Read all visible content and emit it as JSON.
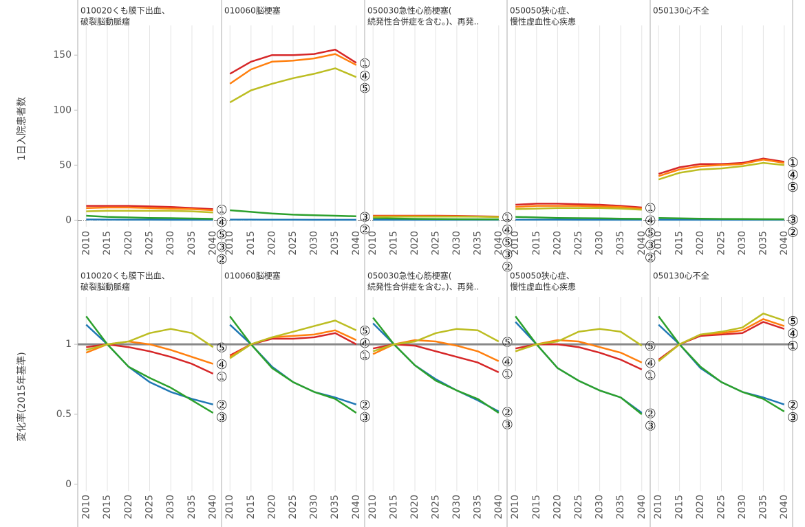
{
  "chart_data": [
    {
      "type": "line",
      "ylabel": "1日入院患者数",
      "x": [
        2010,
        2015,
        2020,
        2025,
        2030,
        2035,
        2040
      ],
      "xlim": [
        2008,
        2042
      ],
      "xticks": [
        2010,
        2015,
        2020,
        2025,
        2030,
        2035,
        2040
      ],
      "ylim": [
        -6,
        172
      ],
      "yticks": [
        0,
        50,
        100,
        150
      ],
      "grid": "x",
      "reference_line": 0,
      "panels": [
        {
          "title": [
            "010020くも膜下出血、",
            "破裂脳動脈瘤"
          ],
          "series": [
            {
              "name": "①",
              "color": "#d62728",
              "values": [
                13,
                13,
                13,
                12.5,
                12,
                11,
                10
              ]
            },
            {
              "name": "②",
              "color": "#1f77b4",
              "values": [
                0.6,
                0.5,
                0.4,
                0.4,
                0.3,
                0.3,
                0.3
              ]
            },
            {
              "name": "③",
              "color": "#2ca02c",
              "values": [
                4,
                3,
                2.5,
                2,
                1.8,
                1.5,
                1.2
              ]
            },
            {
              "name": "④",
              "color": "#ff7f0e",
              "values": [
                11,
                11.5,
                11.5,
                11,
                10.5,
                10,
                9
              ]
            },
            {
              "name": "⑤",
              "color": "#bcbd22",
              "values": [
                8,
                8.5,
                8.5,
                8.5,
                8.5,
                8,
                7
              ]
            }
          ]
        },
        {
          "title": [
            "010060脳梗塞"
          ],
          "series": [
            {
              "name": "①",
              "color": "#d62728",
              "values": [
                133,
                144,
                150,
                150,
                151,
                155,
                143
              ]
            },
            {
              "name": "②",
              "color": "#1f77b4",
              "values": [
                0.5,
                0.5,
                0.4,
                0.4,
                0.3,
                0.3,
                0.3
              ]
            },
            {
              "name": "③",
              "color": "#2ca02c",
              "values": [
                9,
                7.5,
                6,
                5,
                4.5,
                4,
                3.5
              ]
            },
            {
              "name": "④",
              "color": "#ff7f0e",
              "values": [
                124,
                137,
                144,
                145,
                147,
                151,
                141
              ]
            },
            {
              "name": "⑤",
              "color": "#bcbd22",
              "values": [
                107,
                118,
                124,
                129,
                133,
                138,
                130
              ]
            }
          ]
        },
        {
          "title": [
            "050030急性心筋梗塞(",
            "続発性合併症を含む。)、再発.."
          ],
          "series": [
            {
              "name": "①",
              "color": "#d62728",
              "values": [
                4,
                4,
                4,
                4,
                3.8,
                3.5,
                3.2
              ]
            },
            {
              "name": "②",
              "color": "#1f77b4",
              "values": [
                0.3,
                0.3,
                0.3,
                0.3,
                0.3,
                0.3,
                0.3
              ]
            },
            {
              "name": "③",
              "color": "#2ca02c",
              "values": [
                2,
                1.5,
                1.2,
                1,
                0.9,
                0.8,
                0.7
              ]
            },
            {
              "name": "④",
              "color": "#ff7f0e",
              "values": [
                3.5,
                3.6,
                3.6,
                3.5,
                3.4,
                3.2,
                3
              ]
            },
            {
              "name": "⑤",
              "color": "#bcbd22",
              "values": [
                3,
                3.1,
                3.2,
                3.2,
                3.2,
                3.1,
                2.8
              ]
            }
          ]
        },
        {
          "title": [
            "050050狭心症、",
            "慢性虚血性心疾患"
          ],
          "series": [
            {
              "name": "①",
              "color": "#d62728",
              "values": [
                14,
                15,
                15,
                14.5,
                14,
                13,
                11.5
              ]
            },
            {
              "name": "②",
              "color": "#1f77b4",
              "values": [
                0.4,
                0.4,
                0.4,
                0.3,
                0.3,
                0.3,
                0.3
              ]
            },
            {
              "name": "③",
              "color": "#2ca02c",
              "values": [
                3,
                2.5,
                2,
                1.8,
                1.6,
                1.4,
                1.2
              ]
            },
            {
              "name": "④",
              "color": "#ff7f0e",
              "values": [
                12,
                13,
                13,
                13,
                12.5,
                12,
                10.5
              ]
            },
            {
              "name": "⑤",
              "color": "#bcbd22",
              "values": [
                10,
                10.5,
                11,
                11,
                11,
                10.5,
                9.5
              ]
            }
          ]
        },
        {
          "title": [
            "050130心不全"
          ],
          "series": [
            {
              "name": "①",
              "color": "#d62728",
              "values": [
                42,
                48,
                51,
                51,
                52,
                56,
                53
              ]
            },
            {
              "name": "②",
              "color": "#1f77b4",
              "values": [
                0.3,
                0.3,
                0.3,
                0.3,
                0.3,
                0.3,
                0.3
              ]
            },
            {
              "name": "③",
              "color": "#2ca02c",
              "values": [
                2,
                1.7,
                1.3,
                1.1,
                1,
                0.9,
                0.8
              ]
            },
            {
              "name": "④",
              "color": "#ff7f0e",
              "values": [
                40,
                46,
                49,
                50,
                51,
                55,
                52
              ]
            },
            {
              "name": "⑤",
              "color": "#bcbd22",
              "values": [
                37,
                43,
                46,
                47,
                49,
                52,
                50
              ]
            }
          ]
        }
      ]
    },
    {
      "type": "line",
      "ylabel": "変化率(2015年基準)",
      "x": [
        2010,
        2015,
        2020,
        2025,
        2030,
        2035,
        2040
      ],
      "xlim": [
        2008,
        2042
      ],
      "xticks": [
        2010,
        2015,
        2020,
        2025,
        2030,
        2035,
        2040
      ],
      "ylim": [
        -0.05,
        1.3
      ],
      "yticks": [
        0,
        0.5,
        1
      ],
      "grid": "x",
      "reference_line": 1,
      "panels": [
        {
          "title": [
            "010020くも膜下出血、",
            "破裂脳動脈瘤"
          ],
          "series": [
            {
              "name": "①",
              "color": "#d62728",
              "values": [
                0.98,
                1,
                0.98,
                0.95,
                0.91,
                0.86,
                0.79
              ]
            },
            {
              "name": "②",
              "color": "#1f77b4",
              "values": [
                1.14,
                1,
                0.84,
                0.73,
                0.66,
                0.61,
                0.57
              ]
            },
            {
              "name": "③",
              "color": "#2ca02c",
              "values": [
                1.2,
                1,
                0.84,
                0.76,
                0.69,
                0.6,
                0.51
              ]
            },
            {
              "name": "④",
              "color": "#ff7f0e",
              "values": [
                0.94,
                1,
                1.02,
                1,
                0.96,
                0.91,
                0.86
              ]
            },
            {
              "name": "⑤",
              "color": "#bcbd22",
              "values": [
                0.96,
                1,
                1.02,
                1.08,
                1.11,
                1.08,
                0.98
              ]
            }
          ]
        },
        {
          "title": [
            "010060脳梗塞"
          ],
          "series": [
            {
              "name": "①",
              "color": "#d62728",
              "values": [
                0.92,
                1,
                1.04,
                1.04,
                1.05,
                1.08,
                1.0
              ]
            },
            {
              "name": "②",
              "color": "#1f77b4",
              "values": [
                1.14,
                1,
                0.84,
                0.73,
                0.66,
                0.62,
                0.57
              ]
            },
            {
              "name": "③",
              "color": "#2ca02c",
              "values": [
                1.2,
                1,
                0.83,
                0.73,
                0.66,
                0.61,
                0.51
              ]
            },
            {
              "name": "④",
              "color": "#ff7f0e",
              "values": [
                0.91,
                1,
                1.05,
                1.06,
                1.07,
                1.1,
                1.03
              ]
            },
            {
              "name": "⑤",
              "color": "#bcbd22",
              "values": [
                0.9,
                1,
                1.05,
                1.09,
                1.13,
                1.17,
                1.1
              ]
            }
          ]
        },
        {
          "title": [
            "050030急性心筋梗塞(",
            "続発性合併症を含む。)、再発.."
          ],
          "series": [
            {
              "name": "①",
              "color": "#d62728",
              "values": [
                0.97,
                1,
                0.99,
                0.95,
                0.91,
                0.87,
                0.8
              ]
            },
            {
              "name": "②",
              "color": "#1f77b4",
              "values": [
                1.15,
                1,
                0.85,
                0.75,
                0.67,
                0.6,
                0.52
              ]
            },
            {
              "name": "③",
              "color": "#2ca02c",
              "values": [
                1.19,
                1,
                0.85,
                0.74,
                0.67,
                0.61,
                0.51
              ]
            },
            {
              "name": "④",
              "color": "#ff7f0e",
              "values": [
                0.93,
                1,
                1.03,
                1.02,
                0.99,
                0.95,
                0.88
              ]
            },
            {
              "name": "⑤",
              "color": "#bcbd22",
              "values": [
                0.95,
                1,
                1.02,
                1.08,
                1.11,
                1.1,
                1.02
              ]
            }
          ]
        },
        {
          "title": [
            "050050狭心症、",
            "慢性虚血性心疾患"
          ],
          "series": [
            {
              "name": "①",
              "color": "#d62728",
              "values": [
                0.97,
                1,
                1,
                0.98,
                0.94,
                0.89,
                0.82
              ]
            },
            {
              "name": "②",
              "color": "#1f77b4",
              "values": [
                1.16,
                1,
                0.83,
                0.74,
                0.67,
                0.62,
                0.51
              ]
            },
            {
              "name": "③",
              "color": "#2ca02c",
              "values": [
                1.2,
                1,
                0.83,
                0.74,
                0.67,
                0.62,
                0.5
              ]
            },
            {
              "name": "④",
              "color": "#ff7f0e",
              "values": [
                0.95,
                1,
                1.03,
                1.02,
                0.98,
                0.94,
                0.87
              ]
            },
            {
              "name": "⑤",
              "color": "#bcbd22",
              "values": [
                0.95,
                1,
                1.02,
                1.09,
                1.11,
                1.09,
                0.99
              ]
            }
          ]
        },
        {
          "title": [
            "050130心不全"
          ],
          "series": [
            {
              "name": "①",
              "color": "#d62728",
              "values": [
                0.89,
                1,
                1.06,
                1.07,
                1.08,
                1.16,
                1.11
              ]
            },
            {
              "name": "②",
              "color": "#1f77b4",
              "values": [
                1.14,
                1,
                0.83,
                0.73,
                0.66,
                0.62,
                0.57
              ]
            },
            {
              "name": "③",
              "color": "#2ca02c",
              "values": [
                1.2,
                1,
                0.84,
                0.73,
                0.66,
                0.61,
                0.52
              ]
            },
            {
              "name": "④",
              "color": "#ff7f0e",
              "values": [
                0.88,
                1,
                1.07,
                1.08,
                1.1,
                1.18,
                1.13
              ]
            },
            {
              "name": "⑤",
              "color": "#bcbd22",
              "values": [
                0.88,
                1,
                1.07,
                1.09,
                1.12,
                1.22,
                1.17
              ]
            }
          ]
        }
      ]
    }
  ]
}
